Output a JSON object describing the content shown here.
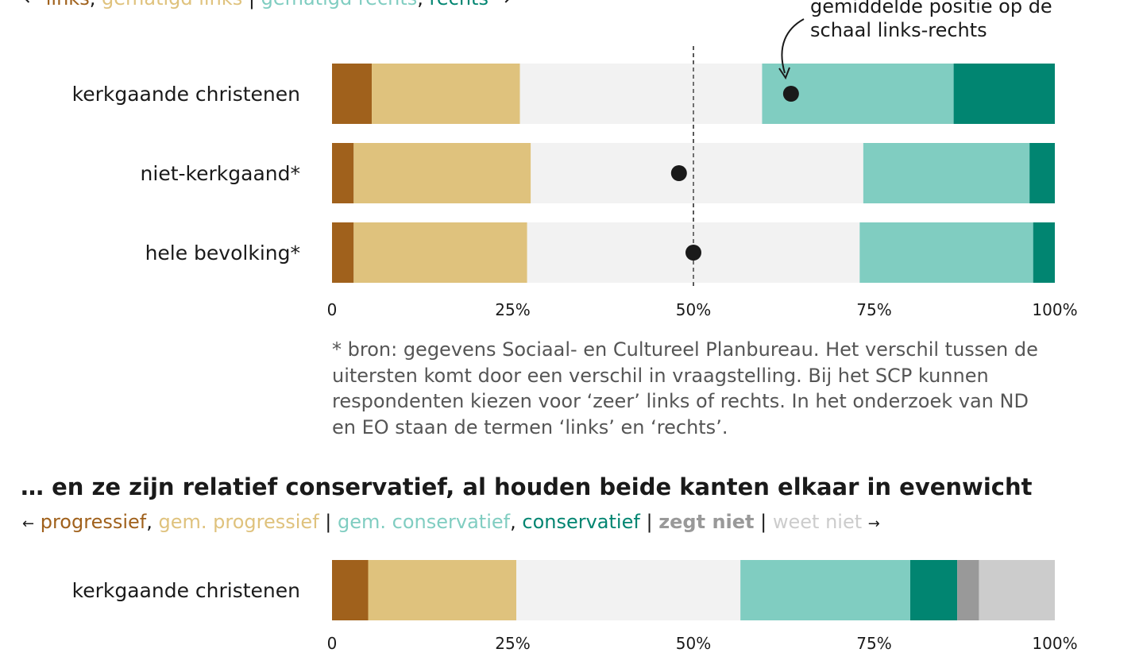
{
  "chart_data": [
    {
      "type": "bar",
      "orientation": "horizontal",
      "stacked": true,
      "categories": [
        "kerkgaande christenen",
        "niet-kerkgaand*",
        "hele bevolking*"
      ],
      "series": [
        {
          "name": "links",
          "color": "#a0611c",
          "values": [
            5.5,
            3,
            3
          ]
        },
        {
          "name": "gematigd links",
          "color": "#dfc27d",
          "values": [
            20.5,
            24.5,
            24
          ]
        },
        {
          "name": "",
          "color": "#f2f2f2",
          "values": [
            33.5,
            46,
            46
          ]
        },
        {
          "name": "gematigd rechts",
          "color": "#80cdc1",
          "values": [
            26.5,
            23,
            24
          ]
        },
        {
          "name": "rechts",
          "color": "#018571",
          "values": [
            14,
            3.5,
            3
          ]
        }
      ],
      "mean_position": [
        63.5,
        48,
        50
      ],
      "reference_line": 50,
      "xlim": [
        0,
        100
      ],
      "xticks": [
        "0",
        "25%",
        "50%",
        "75%",
        "100%"
      ],
      "annotation": "gemiddelde positie op de schaal links-rechts",
      "legend": {
        "arrow_left": "←",
        "arrow_right": "→",
        "items": [
          {
            "label": "links",
            "color": "#a0611c"
          },
          {
            "label": "gematigd links",
            "color": "#dfc27d"
          },
          {
            "label": "gematigd rechts",
            "color": "#80cdc1"
          },
          {
            "label": "rechts",
            "color": "#018571"
          }
        ]
      },
      "note": "* bron: gegevens Sociaal- en Cultureel Planbureau. Het verschil tussen de uitersten komt door een verschil in vraagstelling. Bij het SCP kunnen respondenten kiezen voor ‘zeer’ links of rechts. In het onderzoek van ND en EO staan de termen ‘links’ en ‘rechts’."
    },
    {
      "type": "bar",
      "orientation": "horizontal",
      "stacked": true,
      "title": "… en ze zijn relatief conservatief, al houden beide kanten elkaar in evenwicht",
      "categories": [
        "kerkgaande christenen"
      ],
      "series": [
        {
          "name": "progressief",
          "color": "#a0611c",
          "values": [
            5
          ]
        },
        {
          "name": "gem. progressief",
          "color": "#dfc27d",
          "values": [
            20.5
          ]
        },
        {
          "name": "",
          "color": "#f2f2f2",
          "values": [
            31
          ]
        },
        {
          "name": "gem. conservatief",
          "color": "#80cdc1",
          "values": [
            23.5
          ]
        },
        {
          "name": "conservatief",
          "color": "#018571",
          "values": [
            6.5
          ]
        },
        {
          "name": "zegt niet",
          "color": "#999999",
          "values": [
            3
          ]
        },
        {
          "name": "weet niet",
          "color": "#cccccc",
          "values": [
            10.5
          ]
        }
      ],
      "xlim": [
        0,
        100
      ],
      "xticks": [
        "0",
        "25%",
        "50%",
        "75%",
        "100%"
      ],
      "legend": {
        "arrow_left": "←",
        "arrow_right": "→",
        "items": [
          {
            "label": "progressief",
            "color": "#a0611c"
          },
          {
            "label": "gem. progressief",
            "color": "#dfc27d"
          },
          {
            "label": "gem. conservatief",
            "color": "#80cdc1"
          },
          {
            "label": "conservatief",
            "color": "#018571"
          },
          {
            "label": "zegt niet",
            "color": "#999999"
          },
          {
            "label": "weet niet",
            "color": "#cccccc"
          }
        ]
      }
    }
  ]
}
